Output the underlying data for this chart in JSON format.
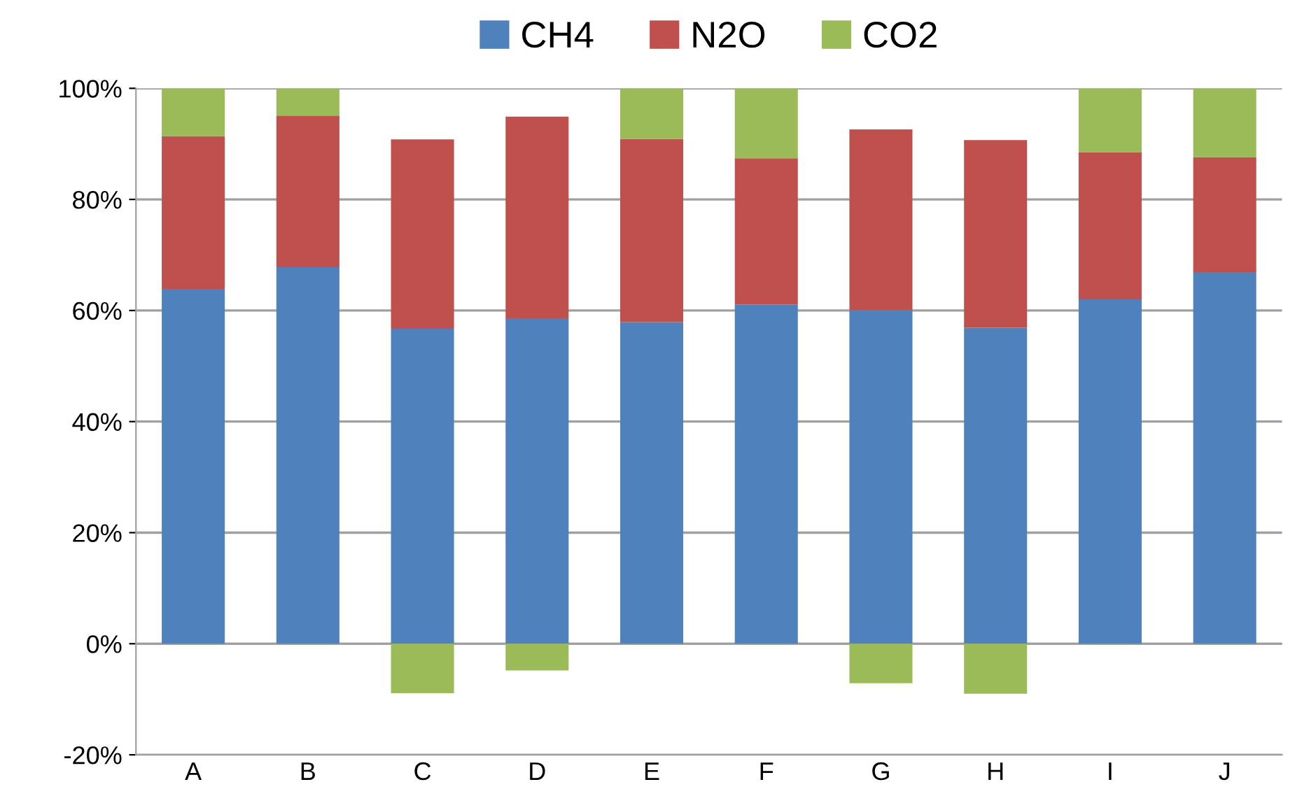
{
  "chart_data": {
    "type": "bar",
    "stacked": true,
    "categories": [
      "A",
      "B",
      "C",
      "D",
      "E",
      "F",
      "G",
      "H",
      "I",
      "J"
    ],
    "series": [
      {
        "name": "CH4",
        "color": "#4f81bd",
        "values": [
          63.9,
          67.8,
          56.7,
          58.6,
          57.9,
          61.1,
          60.1,
          56.9,
          62.0,
          66.9
        ]
      },
      {
        "name": "N2O",
        "color": "#c0504d",
        "values": [
          27.5,
          27.3,
          34.1,
          36.3,
          33.0,
          26.3,
          32.5,
          33.8,
          26.5,
          20.7
        ]
      },
      {
        "name": "CO2",
        "color": "#9bbb59",
        "values": [
          8.6,
          4.9,
          -8.9,
          -4.8,
          9.1,
          12.6,
          -7.1,
          -9.0,
          11.5,
          12.4
        ]
      }
    ],
    "ylim": [
      -20,
      100
    ],
    "yticks": [
      {
        "value": -20,
        "label": "-20%"
      },
      {
        "value": 0,
        "label": "0%"
      },
      {
        "value": 20,
        "label": "20%"
      },
      {
        "value": 40,
        "label": "40%"
      },
      {
        "value": 60,
        "label": "60%"
      },
      {
        "value": 80,
        "label": "80%"
      },
      {
        "value": 100,
        "label": "100%"
      }
    ],
    "grid": "y",
    "legend": "top"
  }
}
